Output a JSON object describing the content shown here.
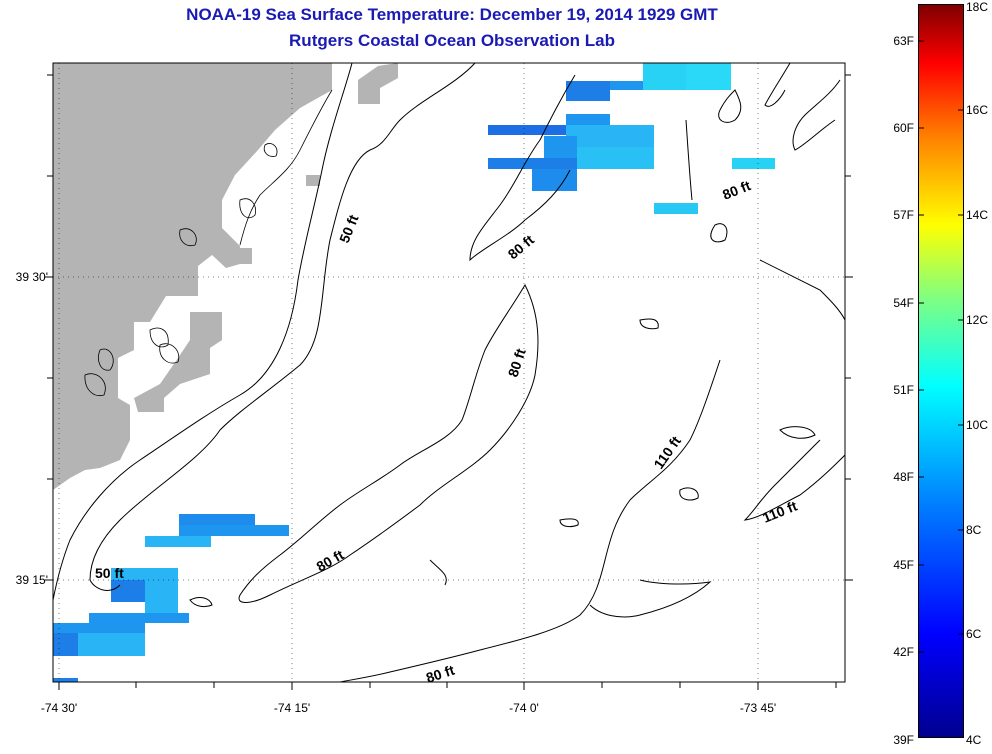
{
  "title": {
    "line1": "NOAA-19 Sea Surface Temperature:  December 19, 2014 1929 GMT",
    "line2": "Rutgers Coastal Ocean Observation Lab"
  },
  "map": {
    "lat_labels": [
      "39 30'",
      "39 15'"
    ],
    "lon_labels": [
      "-74 30'",
      "-74 15'",
      "-74 0'",
      "-73 45'"
    ],
    "land_color": "#b4b4b4",
    "grid": true,
    "depth_contour_labels": [
      "50 ft",
      "50 ft",
      "80 ft",
      "80 ft",
      "80 ft",
      "80 ft",
      "80 ft",
      "110 ft",
      "110 ft"
    ]
  },
  "colorbar": {
    "fahrenheit_labels": [
      "63F",
      "60F",
      "57F",
      "54F",
      "51F",
      "48F",
      "45F",
      "42F",
      "39F"
    ],
    "celsius_labels": [
      "18C",
      "16C",
      "14C",
      "12C",
      "10C",
      "8C",
      "6C",
      "4C"
    ],
    "range_c": [
      4,
      18
    ],
    "colormap": "jet"
  },
  "colors": {
    "title": "#1a1ab4",
    "pixel_deep_blue": "#1e6ee6",
    "pixel_mid_blue": "#1e96f0",
    "pixel_light_blue": "#28b4f5",
    "pixel_cyan": "#28d2f5"
  }
}
